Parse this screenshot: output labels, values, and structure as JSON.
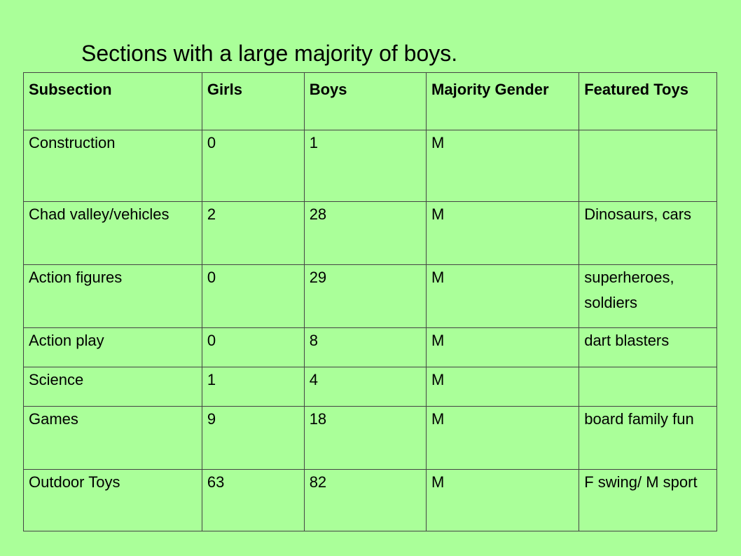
{
  "title": "Sections with a large majority of boys.",
  "table": {
    "headers": [
      "Subsection",
      "Girls",
      "Boys",
      "Majority Gender",
      "Featured Toys"
    ],
    "rows": [
      [
        "Construction",
        "0",
        "1",
        "M",
        ""
      ],
      [
        "Chad valley/vehicles",
        "2",
        "28",
        "M",
        "Dinosaurs, cars"
      ],
      [
        "Action figures",
        "0",
        "29",
        "M",
        "superheroes, soldiers"
      ],
      [
        "Action play",
        "0",
        "8",
        "M",
        "dart blasters"
      ],
      [
        "Science",
        "1",
        "4",
        "M",
        ""
      ],
      [
        "Games",
        "9",
        "18",
        "M",
        "board family fun"
      ],
      [
        "Outdoor Toys",
        "63",
        "82",
        "M",
        "F swing/ M sport"
      ]
    ]
  }
}
